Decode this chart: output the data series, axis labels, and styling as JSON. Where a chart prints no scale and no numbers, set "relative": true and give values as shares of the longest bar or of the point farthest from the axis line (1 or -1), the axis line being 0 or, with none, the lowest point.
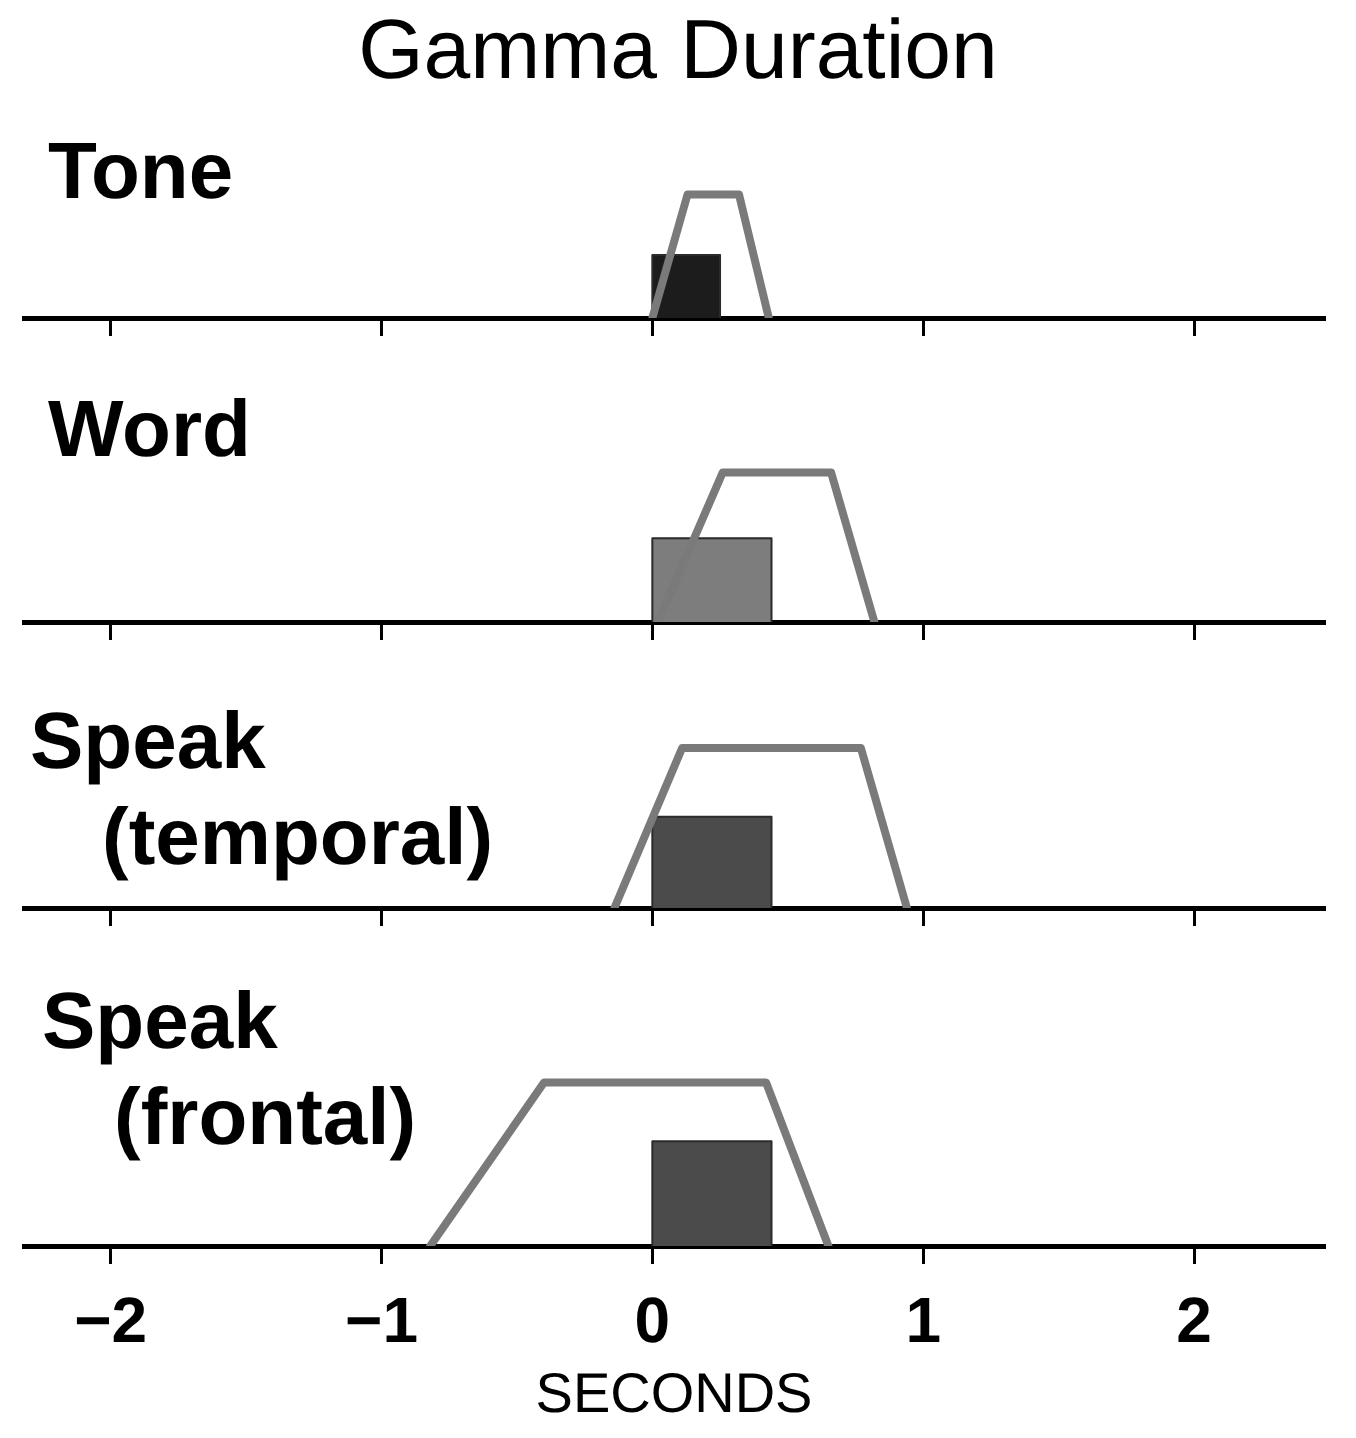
{
  "chart_data": [
    {
      "type": "line",
      "title": "Gamma Duration",
      "subtitle": "Tone",
      "relative": true,
      "xlim": [
        -2.32,
        2.48
      ],
      "xticks": [
        -2,
        -1,
        0,
        1,
        2
      ],
      "tick_labels": false,
      "series": [
        {
          "color": "#7a7a7a",
          "x": [
            0,
            0.13,
            0.32,
            0.43
          ],
          "values": [
            0,
            1,
            1,
            0
          ]
        },
        {
          "type": "area",
          "color": "#1c1c1c",
          "x": [
            0,
            0,
            0.25,
            0.25
          ],
          "values": [
            0,
            0.51,
            0.51,
            0
          ]
        }
      ]
    },
    {
      "type": "line",
      "subtitle": "Word",
      "relative": true,
      "xlim": [
        -2.32,
        2.48
      ],
      "xticks": [
        -2,
        -1,
        0,
        1,
        2
      ],
      "tick_labels": false,
      "series": [
        {
          "color": "#7a7a7a",
          "x": [
            0.02,
            0.26,
            0.66,
            0.82
          ],
          "values": [
            0,
            1,
            1,
            0
          ]
        },
        {
          "type": "area",
          "color": "#7d7d7d",
          "x": [
            0,
            0,
            0.44,
            0.44
          ],
          "values": [
            0,
            0.56,
            0.56,
            0
          ]
        }
      ]
    },
    {
      "type": "line",
      "subtitle": "Speak (temporal)",
      "relative": true,
      "xlim": [
        -2.32,
        2.48
      ],
      "xticks": [
        -2,
        -1,
        0,
        1,
        2
      ],
      "tick_labels": false,
      "series": [
        {
          "color": "#7a7a7a",
          "x": [
            -0.14,
            0.11,
            0.77,
            0.94
          ],
          "values": [
            0,
            1,
            1,
            0
          ]
        },
        {
          "type": "area",
          "color": "#4b4b4b",
          "x": [
            0,
            0,
            0.44,
            0.44
          ],
          "values": [
            0,
            0.57,
            0.57,
            0
          ]
        }
      ]
    },
    {
      "type": "line",
      "subtitle": "Speak (frontal)",
      "xlabel": "SECONDS",
      "relative": true,
      "xlim": [
        -2.32,
        2.48
      ],
      "xticks": [
        -2,
        -1,
        0,
        1,
        2
      ],
      "series": [
        {
          "color": "#7a7a7a",
          "x": [
            -0.82,
            -0.4,
            0.42,
            0.65
          ],
          "values": [
            0,
            1,
            1,
            0
          ]
        },
        {
          "type": "area",
          "color": "#4b4b4b",
          "x": [
            0,
            0,
            0.44,
            0.44
          ],
          "values": [
            0,
            0.64,
            0.64,
            0
          ]
        }
      ]
    }
  ]
}
